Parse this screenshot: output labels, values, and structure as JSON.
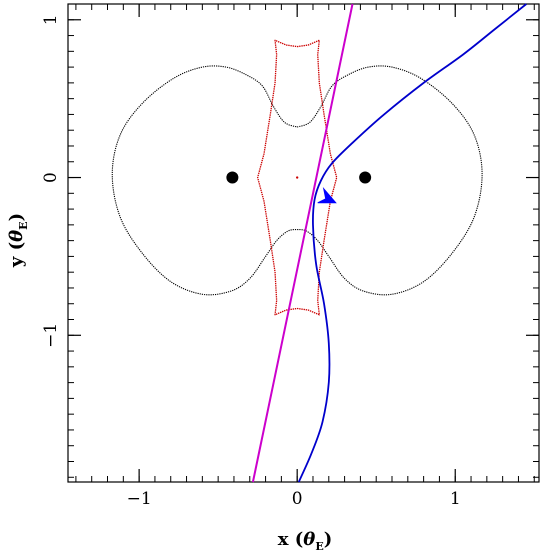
{
  "chart_data": {
    "type": "line",
    "xlabel": "x (θE)",
    "ylabel": "y (θE)",
    "xlabel_main": "x",
    "ylabel_main": "y",
    "theta_symbol": "θ",
    "theta_subscript": "E",
    "xlim": [
      -1.45,
      1.53
    ],
    "ylim": [
      -1.93,
      1.1
    ],
    "x_ticks": [
      {
        "value": -1,
        "label": "−1"
      },
      {
        "value": 0,
        "label": "0"
      },
      {
        "value": 1,
        "label": "1"
      }
    ],
    "y_ticks": [
      {
        "value": -1,
        "label": "−1"
      },
      {
        "value": 0,
        "label": "0"
      },
      {
        "value": 1,
        "label": "1"
      }
    ],
    "minor_tick_step": 0.1,
    "grid": false,
    "colors": {
      "critical_curve": "#000000",
      "caustic": "#cc0000",
      "source_trajectory_straight": "#cc00cc",
      "source_trajectory_curved": "#0000cc",
      "arrow": "#0000ff",
      "lens": "#000000"
    },
    "series": [
      {
        "kind": "critical-curve",
        "points": [
          [
            0,
            0.32
          ],
          [
            0.08,
            0.35
          ],
          [
            0.15,
            0.45
          ],
          [
            0.22,
            0.58
          ],
          [
            0.32,
            0.65
          ],
          [
            0.45,
            0.7
          ],
          [
            0.6,
            0.7
          ],
          [
            0.78,
            0.63
          ],
          [
            0.98,
            0.47
          ],
          [
            1.12,
            0.27
          ],
          [
            1.17,
            0.02
          ],
          [
            1.12,
            -0.25
          ],
          [
            0.98,
            -0.48
          ],
          [
            0.8,
            -0.66
          ],
          [
            0.6,
            -0.74
          ],
          [
            0.42,
            -0.72
          ],
          [
            0.3,
            -0.64
          ],
          [
            0.2,
            -0.5
          ],
          [
            0.13,
            -0.4
          ],
          [
            0.06,
            -0.34
          ],
          [
            0,
            -0.33
          ],
          [
            -0.06,
            -0.34
          ],
          [
            -0.13,
            -0.4
          ],
          [
            -0.2,
            -0.5
          ],
          [
            -0.3,
            -0.64
          ],
          [
            -0.42,
            -0.72
          ],
          [
            -0.6,
            -0.74
          ],
          [
            -0.8,
            -0.66
          ],
          [
            -0.98,
            -0.48
          ],
          [
            -1.12,
            -0.25
          ],
          [
            -1.17,
            0.02
          ],
          [
            -1.12,
            0.27
          ],
          [
            -0.98,
            0.47
          ],
          [
            -0.78,
            0.63
          ],
          [
            -0.6,
            0.7
          ],
          [
            -0.45,
            0.7
          ],
          [
            -0.32,
            0.65
          ],
          [
            -0.22,
            0.58
          ],
          [
            -0.15,
            0.45
          ],
          [
            -0.08,
            0.35
          ],
          [
            0,
            0.32
          ]
        ]
      },
      {
        "kind": "caustic",
        "points": [
          [
            0.14,
            0.87
          ],
          [
            0.07,
            0.84
          ],
          [
            0,
            0.83
          ],
          [
            -0.07,
            0.84
          ],
          [
            -0.14,
            0.87
          ],
          [
            -0.13,
            0.78
          ],
          [
            -0.14,
            0.6
          ],
          [
            -0.17,
            0.4
          ],
          [
            -0.21,
            0.15
          ],
          [
            -0.25,
            0
          ],
          [
            -0.21,
            -0.15
          ],
          [
            -0.17,
            -0.4
          ],
          [
            -0.14,
            -0.6
          ],
          [
            -0.13,
            -0.78
          ],
          [
            -0.14,
            -0.87
          ],
          [
            -0.07,
            -0.84
          ],
          [
            0,
            -0.83
          ],
          [
            0.07,
            -0.84
          ],
          [
            0.14,
            -0.87
          ],
          [
            0.13,
            -0.78
          ],
          [
            0.14,
            -0.6
          ],
          [
            0.17,
            -0.4
          ],
          [
            0.21,
            -0.15
          ],
          [
            0.25,
            0
          ],
          [
            0.21,
            0.15
          ],
          [
            0.17,
            0.4
          ],
          [
            0.14,
            0.6
          ],
          [
            0.13,
            0.78
          ],
          [
            0.14,
            0.87
          ]
        ]
      },
      {
        "kind": "source-trajectory-straight",
        "points": [
          [
            0.35,
            1.1
          ],
          [
            -0.28,
            -1.93
          ]
        ]
      },
      {
        "kind": "source-trajectory-curved",
        "points": [
          [
            1.45,
            1.1
          ],
          [
            1.25,
            0.94
          ],
          [
            1.05,
            0.78
          ],
          [
            0.8,
            0.6
          ],
          [
            0.55,
            0.4
          ],
          [
            0.35,
            0.22
          ],
          [
            0.22,
            0.09
          ],
          [
            0.15,
            -0.02
          ],
          [
            0.11,
            -0.14
          ],
          [
            0.1,
            -0.3
          ],
          [
            0.12,
            -0.55
          ],
          [
            0.17,
            -0.8
          ],
          [
            0.2,
            -1.05
          ],
          [
            0.2,
            -1.3
          ],
          [
            0.16,
            -1.55
          ],
          [
            0.09,
            -1.75
          ],
          [
            0.01,
            -1.93
          ]
        ]
      }
    ],
    "lenses": [
      {
        "x": -0.41,
        "y": 0
      },
      {
        "x": 0.43,
        "y": 0
      }
    ],
    "arrow": {
      "x": 0.13,
      "y": -0.16
    }
  }
}
